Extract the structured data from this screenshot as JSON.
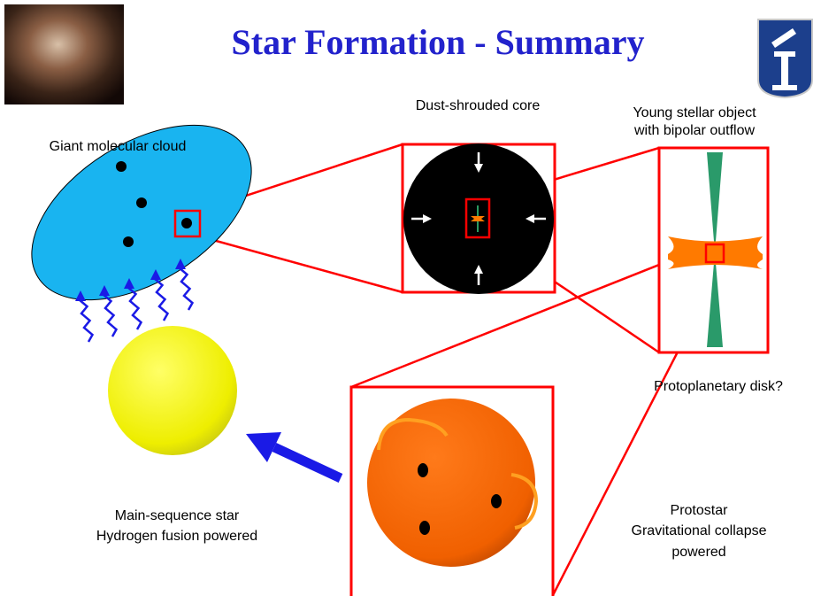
{
  "title": "Star Formation - Summary",
  "labels": {
    "cloud": "Giant molecular cloud",
    "core": "Dust-shrouded core",
    "yso": [
      "Young stellar object",
      "with bipolar outflow"
    ],
    "disk": "Protoplanetary disk?",
    "main_sequence": [
      "Main-sequence star",
      "Hydrogen fusion powered"
    ],
    "protostar": [
      "Protostar",
      "Gravitational collapse",
      "powered"
    ]
  }
}
